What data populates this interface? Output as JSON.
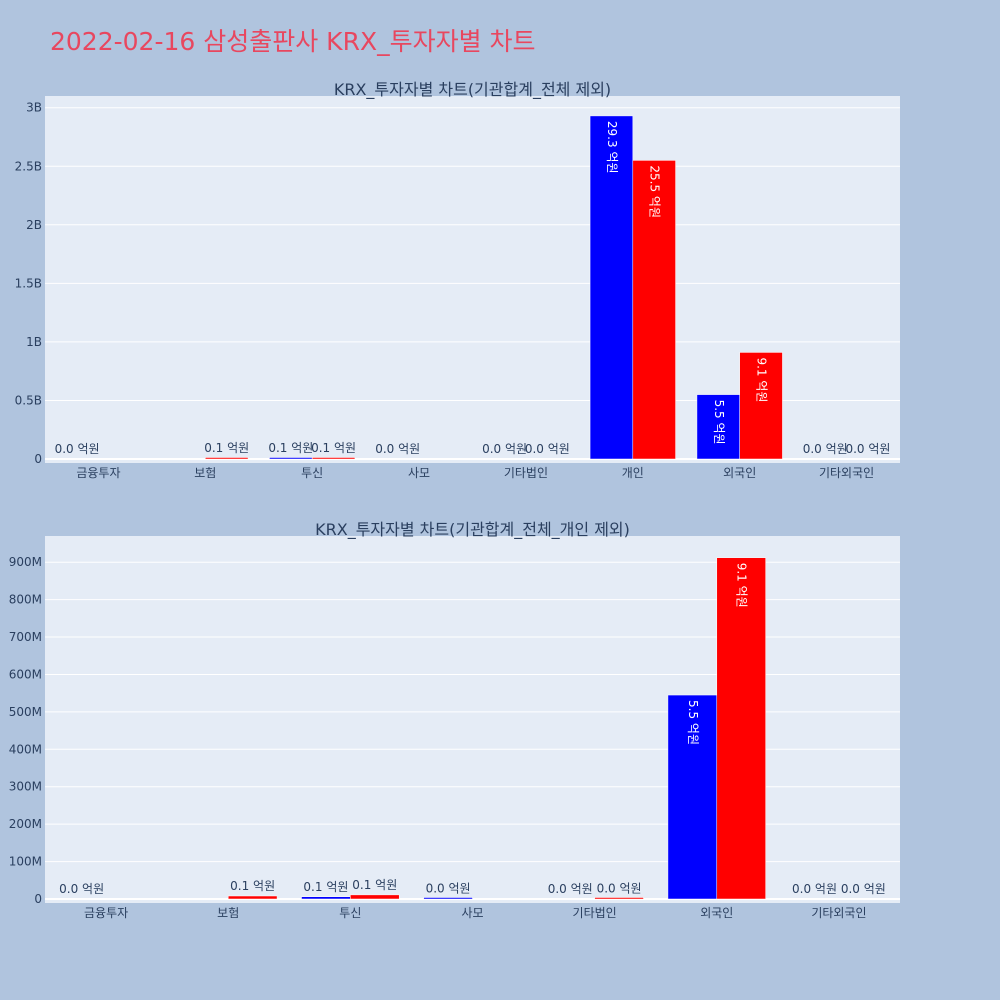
{
  "page": {
    "title": "2022-02-16 삼성출판사 KRX_투자자별 차트",
    "background": "#b0c4de",
    "title_color": "#e8475f",
    "plot_background": "#e5ecf6"
  },
  "chart_data": [
    {
      "type": "bar",
      "title": "KRX_투자자별 차트(기관합계_전체 제외)",
      "categories": [
        "금융투자",
        "보험",
        "투신",
        "사모",
        "기타법인",
        "개인",
        "외국인",
        "기타외국인"
      ],
      "series": [
        {
          "color": "#0000ff",
          "values": [
            0,
            0,
            10000000,
            0,
            0,
            2930000000,
            550000000,
            0
          ],
          "labels": [
            "0.0 억원",
            "",
            "0.1 억원",
            "0.0 억원",
            "0.0 억원",
            "29.3 억원",
            "5.5 억원",
            "0.0 억원"
          ]
        },
        {
          "color": "#ff0000",
          "values": [
            0,
            10000000,
            10000000,
            0,
            0,
            2550000000,
            910000000,
            0
          ],
          "labels": [
            "",
            "0.1 억원",
            "0.1 억원",
            "",
            "0.0 억원",
            "25.5 억원",
            "9.1 억원",
            "0.0 억원"
          ]
        }
      ],
      "ylim": [
        0,
        3100000000
      ],
      "yticks": [
        0,
        500000000,
        1000000000,
        1500000000,
        2000000000,
        2500000000,
        3000000000
      ],
      "ytick_labels": [
        "0",
        "0.5B",
        "1B",
        "1.5B",
        "2B",
        "2.5B",
        "3B"
      ],
      "xlabel": "",
      "ylabel": "",
      "grid": true,
      "legend": "none"
    },
    {
      "type": "bar",
      "title": "KRX_투자자별 차트(기관합계_전체_개인 제외)",
      "categories": [
        "금융투자",
        "보험",
        "투신",
        "사모",
        "기타법인",
        "외국인",
        "기타외국인"
      ],
      "series": [
        {
          "color": "#0000ff",
          "values": [
            0,
            0,
            6000000,
            1000000,
            0,
            545000000,
            0
          ],
          "labels": [
            "0.0 억원",
            "",
            "0.1 억원",
            "0.0 억원",
            "0.0 억원",
            "5.5 억원",
            "0.0 억원"
          ]
        },
        {
          "color": "#ff0000",
          "values": [
            0,
            8000000,
            11000000,
            0,
            2000000,
            912000000,
            0
          ],
          "labels": [
            "",
            "0.1 억원",
            "0.1 억원",
            "",
            "0.0 억원",
            "9.1 억원",
            "0.0 억원"
          ]
        }
      ],
      "ylim": [
        0,
        970000000
      ],
      "yticks": [
        0,
        100000000,
        200000000,
        300000000,
        400000000,
        500000000,
        600000000,
        700000000,
        800000000,
        900000000
      ],
      "ytick_labels": [
        "0",
        "100M",
        "200M",
        "300M",
        "400M",
        "500M",
        "600M",
        "700M",
        "800M",
        "900M"
      ],
      "xlabel": "",
      "ylabel": "",
      "grid": true,
      "legend": "none"
    }
  ]
}
